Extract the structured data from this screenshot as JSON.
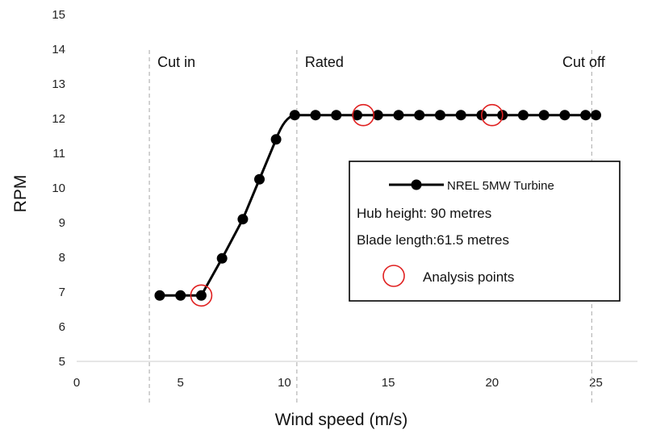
{
  "chart_data": {
    "type": "line",
    "title": "",
    "xlabel": "Wind speed (m/s)",
    "ylabel": "RPM",
    "xlim": [
      0,
      27
    ],
    "ylim": [
      5,
      15
    ],
    "x_ticks": [
      0,
      5,
      10,
      15,
      20,
      25
    ],
    "y_ticks": [
      5,
      6,
      7,
      8,
      9,
      10,
      11,
      12,
      13,
      14,
      15
    ],
    "grid": false,
    "series": [
      {
        "name": "NREL 5MW Turbine",
        "color": "#000000",
        "x": [
          4,
          5,
          6,
          7,
          8,
          8.8,
          9.6,
          10.5,
          11.5,
          12.5,
          13.5,
          14.5,
          15.5,
          16.5,
          17.5,
          18.5,
          19.5,
          20.5,
          21.5,
          22.5,
          23.5,
          24.5,
          25
        ],
        "y": [
          6.9,
          6.9,
          6.9,
          7.97,
          9.1,
          10.25,
          11.4,
          12.1,
          12.1,
          12.1,
          12.1,
          12.1,
          12.1,
          12.1,
          12.1,
          12.1,
          12.1,
          12.1,
          12.1,
          12.1,
          12.1,
          12.1,
          12.1
        ]
      }
    ],
    "analysis_points": [
      {
        "x": 6,
        "y": 6.9
      },
      {
        "x": 13.8,
        "y": 12.1
      },
      {
        "x": 20,
        "y": 12.1
      }
    ],
    "reference_lines": [
      {
        "x": 3.5,
        "label": "Cut in"
      },
      {
        "x": 10.6,
        "label": "Rated"
      },
      {
        "x": 24.8,
        "label": "Cut off"
      }
    ],
    "legend": {
      "placement": "right",
      "series_label": "NREL 5MW Turbine",
      "notes": [
        "Hub height: 90 metres",
        "Blade length:61.5 metres"
      ],
      "marker_label": "Analysis points"
    },
    "marker_color": "#000000",
    "highlight_color": "#e02020",
    "refline_color": "#bbbbbb"
  }
}
